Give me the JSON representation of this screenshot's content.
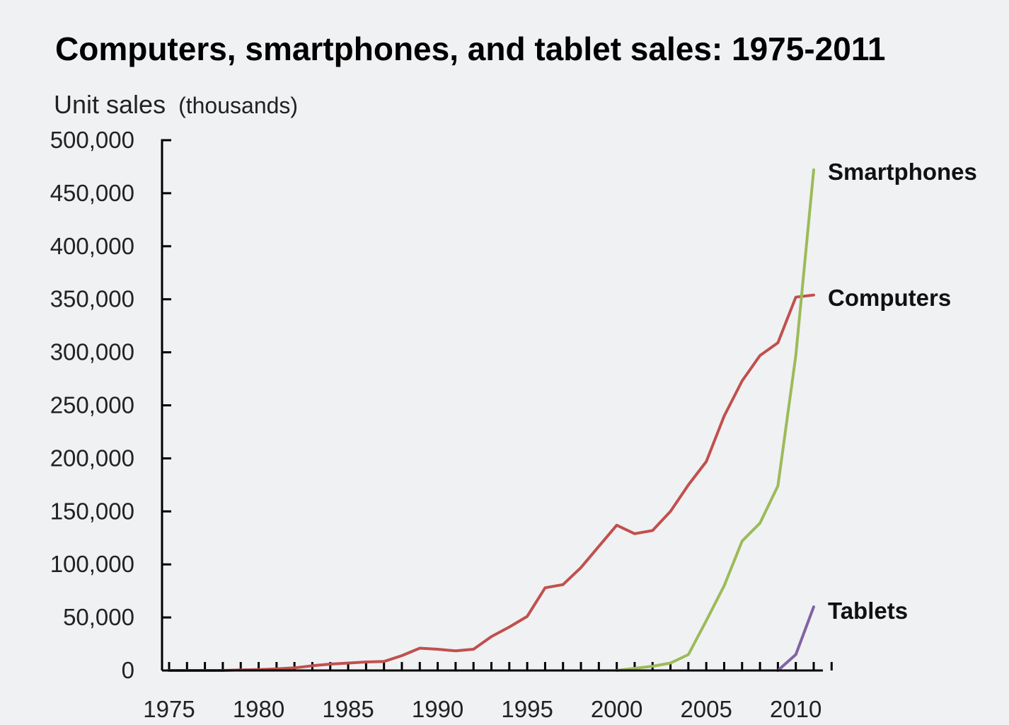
{
  "chart_data": {
    "type": "line",
    "title": "Computers, smartphones, and tablet sales: 1975-2011",
    "ylabel_main": "Unit sales",
    "ylabel_unit": "(thousands)",
    "xlabel": "",
    "xlim": [
      1975,
      2011
    ],
    "ylim": [
      0,
      500000
    ],
    "y_ticks": [
      0,
      50000,
      100000,
      150000,
      200000,
      250000,
      300000,
      350000,
      400000,
      450000,
      500000
    ],
    "y_tick_labels": [
      "0",
      "50,000",
      "100,000",
      "150,000",
      "200,000",
      "250,000",
      "300,000",
      "350,000",
      "400,000",
      "450,000",
      "500,000"
    ],
    "x_ticks": [
      1975,
      1980,
      1985,
      1990,
      1995,
      2000,
      2005,
      2010
    ],
    "x_tick_labels": [
      "1975",
      "1980",
      "1985",
      "1990",
      "1995",
      "2000",
      "2005",
      "2010"
    ],
    "grid": false,
    "series": [
      {
        "name": "Computers",
        "color": "#c0504d",
        "x": [
          1975,
          1976,
          1977,
          1978,
          1979,
          1980,
          1981,
          1982,
          1983,
          1984,
          1985,
          1986,
          1987,
          1988,
          1989,
          1990,
          1991,
          1992,
          1993,
          1994,
          1995,
          1996,
          1997,
          1998,
          1999,
          2000,
          2001,
          2002,
          2003,
          2004,
          2005,
          2006,
          2007,
          2008,
          2009,
          2010,
          2011
        ],
        "values": [
          0,
          0,
          0,
          0,
          500,
          800,
          1500,
          2500,
          4500,
          6000,
          7000,
          8000,
          8500,
          14000,
          21000,
          20000,
          18500,
          20000,
          32000,
          41000,
          51000,
          78000,
          81000,
          97000,
          117000,
          137000,
          129000,
          132000,
          150000,
          175000,
          197000,
          240000,
          273000,
          297000,
          309000,
          352000,
          354000
        ]
      },
      {
        "name": "Smartphones",
        "color": "#9bbb59",
        "x": [
          2000,
          2001,
          2002,
          2003,
          2004,
          2005,
          2006,
          2007,
          2008,
          2009,
          2010,
          2011
        ],
        "values": [
          0,
          2000,
          4000,
          7000,
          15000,
          47000,
          80000,
          122000,
          139000,
          174000,
          297000,
          472000
        ]
      },
      {
        "name": "Tablets",
        "color": "#8064a2",
        "x": [
          2009,
          2010,
          2011
        ],
        "values": [
          0,
          15000,
          60000
        ]
      }
    ]
  }
}
